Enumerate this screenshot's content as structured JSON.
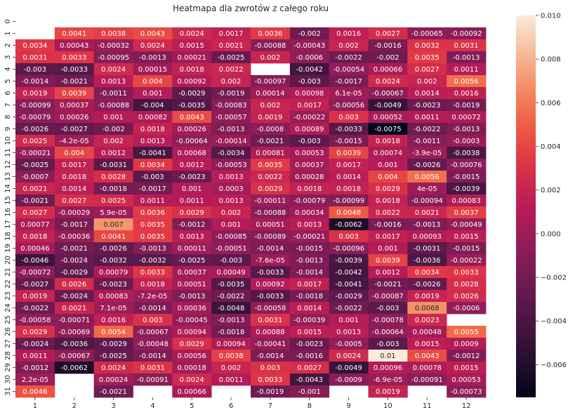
{
  "chart_data": {
    "type": "heatmap",
    "title": "Heatmapa dla zwrotów z całego roku",
    "xlabel": "",
    "ylabel": "",
    "x_categories": [
      "1",
      "2",
      "3",
      "4",
      "5",
      "6",
      "7",
      "8",
      "9",
      "10",
      "11",
      "12"
    ],
    "y_categories": [
      "0",
      "1",
      "2",
      "3",
      "4",
      "5",
      "6",
      "7",
      "8",
      "9",
      "10",
      "11",
      "12",
      "13",
      "14",
      "15",
      "16",
      "17",
      "18",
      "19",
      "20",
      "21",
      "22",
      "23",
      "24",
      "25",
      "26",
      "27",
      "28",
      "29",
      "30",
      "31"
    ],
    "values": [
      [
        null,
        null,
        null,
        null,
        null,
        null,
        null,
        null,
        null,
        null,
        null,
        null
      ],
      [
        null,
        0.0041,
        0.0038,
        0.0043,
        0.0024,
        0.0017,
        0.0036,
        -0.002,
        0.0016,
        0.0027,
        -0.00065,
        -0.00092
      ],
      [
        0.0034,
        0.00043,
        -0.00032,
        0.0024,
        0.0015,
        0.0021,
        -0.00088,
        -0.00043,
        0.002,
        -0.0016,
        0.0032,
        0.0031
      ],
      [
        0.0031,
        0.0033,
        -0.00095,
        -0.0013,
        0.00021,
        -0.0025,
        0.002,
        -0.0006,
        -0.0022,
        -0.002,
        0.0035,
        -0.0013
      ],
      [
        -0.003,
        -0.0033,
        0.0024,
        0.00015,
        0.0018,
        0.0022,
        null,
        -0.0042,
        -0.00054,
        0.00066,
        0.0027,
        0.0011
      ],
      [
        -0.0014,
        -0.0021,
        0.0013,
        0.004,
        0.00092,
        0.002,
        -0.00097,
        -0.003,
        -0.0017,
        0.0024,
        0.002,
        0.0056
      ],
      [
        0.0019,
        0.0039,
        -0.0011,
        0.001,
        -0.0029,
        -0.0019,
        0.00014,
        0.00098,
        6.1e-05,
        -0.00067,
        0.0014,
        0.0016
      ],
      [
        -0.00099,
        0.00037,
        -0.00088,
        -0.004,
        -0.0035,
        -0.00083,
        0.002,
        0.0017,
        -0.00056,
        -0.0049,
        -0.0023,
        -0.0019
      ],
      [
        -0.00079,
        0.00026,
        0.001,
        0.00082,
        0.0043,
        -0.00057,
        0.0019,
        -0.00022,
        0.003,
        0.00052,
        0.0011,
        0.00072
      ],
      [
        -0.0026,
        -0.0027,
        -0.002,
        0.0018,
        0.00026,
        -0.0013,
        -0.0008,
        0.00089,
        -0.0033,
        -0.0075,
        -0.0022,
        -0.0013
      ],
      [
        0.0025,
        -4.2e-05,
        0.002,
        0.0013,
        -0.00064,
        -0.00014,
        -0.0021,
        -0.003,
        -0.0015,
        0.0018,
        -0.0011,
        -0.0003
      ],
      [
        -0.00021,
        0.004,
        0.0012,
        -0.0041,
        0.00068,
        -0.0034,
        0.00081,
        0.00053,
        0.0039,
        0.00074,
        -3.9e-05,
        -0.0038
      ],
      [
        -0.0025,
        0.0017,
        -0.0031,
        0.0034,
        0.0012,
        -0.00053,
        0.0035,
        0.00037,
        0.0017,
        0.001,
        -0.0026,
        -0.00076
      ],
      [
        -0.0007,
        0.0018,
        0.0028,
        -0.003,
        -0.0023,
        0.0013,
        0.0022,
        0.00028,
        0.0014,
        0.004,
        0.0056,
        -0.0015
      ],
      [
        0.0021,
        0.0014,
        -0.0018,
        -0.0017,
        0.001,
        0.0003,
        0.0029,
        0.0018,
        0.0018,
        0.0029,
        4e-05,
        -0.0039
      ],
      [
        -0.0021,
        0.0027,
        0.0025,
        0.0011,
        0.0011,
        0.0013,
        -0.00011,
        -0.00079,
        -0.00099,
        0.0018,
        -0.00094,
        0.00083
      ],
      [
        0.0027,
        -0.00029,
        5.9e-05,
        0.0036,
        0.0029,
        0.002,
        -0.00088,
        0.00034,
        0.0048,
        0.0022,
        0.0021,
        0.0037
      ],
      [
        0.00077,
        -0.0017,
        0.007,
        0.0035,
        -0.0012,
        0.001,
        0.00051,
        0.0013,
        -0.0062,
        -0.0016,
        -0.0013,
        -0.00049
      ],
      [
        0.0018,
        -0.00036,
        0.0041,
        0.0035,
        0.0013,
        -0.00085,
        -0.00089,
        -0.00021,
        0.003,
        0.0017,
        0.00093,
        0.0015
      ],
      [
        0.00046,
        -0.0021,
        -0.0026,
        -0.0013,
        0.00011,
        -0.00051,
        -0.0014,
        -0.0015,
        -0.00096,
        0.001,
        -0.0031,
        -0.0015
      ],
      [
        -0.0046,
        -0.0024,
        -0.0032,
        -0.0032,
        -0.0025,
        -0.003,
        -7.6e-05,
        -0.0013,
        -0.0039,
        0.0039,
        -0.0036,
        -0.00022
      ],
      [
        -0.00072,
        -0.0029,
        0.00079,
        0.0033,
        0.00037,
        0.00049,
        -0.0033,
        -0.0014,
        -0.0042,
        0.0012,
        0.0034,
        0.0033
      ],
      [
        -0.0027,
        0.0026,
        -0.0023,
        0.0018,
        0.00051,
        -0.0035,
        0.00092,
        0.0017,
        -0.0041,
        -0.0021,
        -0.0026,
        0.0028
      ],
      [
        0.0019,
        -0.0024,
        0.00083,
        -7.2e-05,
        -0.0013,
        -0.0022,
        -0.0033,
        -0.0018,
        -0.0029,
        -0.00087,
        0.0019,
        0.0026
      ],
      [
        -0.0022,
        0.0021,
        7.1e-05,
        -0.0014,
        0.00036,
        -0.0048,
        -0.00058,
        0.0014,
        -0.0022,
        -0.003,
        0.0068,
        -0.0006
      ],
      [
        -0.00058,
        -0.00071,
        0.0016,
        0.003,
        -0.00045,
        -0.0013,
        0.0031,
        -0.00039,
        0.001,
        -0.00078,
        0.0023,
        null
      ],
      [
        0.0029,
        -0.00069,
        0.0054,
        -0.00067,
        0.00094,
        -0.0018,
        0.00088,
        0.0015,
        0.0013,
        -0.00064,
        0.00048,
        0.0055
      ],
      [
        -0.0024,
        -0.0036,
        -0.0029,
        -0.00048,
        0.0029,
        0.00094,
        -0.00041,
        -0.0023,
        -0.0005,
        -0.003,
        0.0015,
        0.0009
      ],
      [
        0.0011,
        -0.00067,
        -0.0025,
        -0.0014,
        0.00056,
        0.0038,
        -0.0014,
        -0.0016,
        0.0024,
        0.01,
        0.0043,
        -0.0012
      ],
      [
        -0.0012,
        -0.0062,
        0.0024,
        0.0031,
        0.00018,
        0.002,
        0.003,
        0.0027,
        -0.0049,
        0.00096,
        0.00078,
        0.0015
      ],
      [
        2.2e-05,
        null,
        0.00024,
        -0.00091,
        0.0024,
        0.0011,
        0.0033,
        -0.0043,
        -0.0009,
        -6.9e-05,
        -0.00091,
        0.00053
      ],
      [
        0.0046,
        null,
        -0.0021,
        null,
        0.00066,
        null,
        -0.0019,
        -0.001,
        null,
        0.0019,
        null,
        -0.00073
      ]
    ],
    "colorbar": {
      "colormap": "rocket",
      "vmin": -0.0075,
      "vmax": 0.01,
      "ticks": [
        -0.006,
        -0.004,
        -0.002,
        0.0,
        0.002,
        0.004,
        0.006,
        0.008,
        0.01
      ],
      "tick_labels": [
        "−0.006",
        "−0.004",
        "−0.002",
        "0.000",
        "0.002",
        "0.004",
        "0.006",
        "0.008",
        "0.010"
      ]
    },
    "annotations": true,
    "grid": false,
    "legend": "colorbar-right"
  }
}
